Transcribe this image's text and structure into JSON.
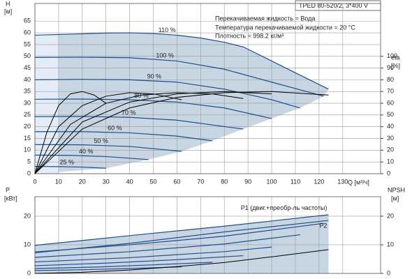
{
  "chart_data": [
    {
      "type": "line",
      "title": "TPED 80-520/2, 3*400 V",
      "notes": [
        "Перекачиваемая жидкость = Вода",
        "Температура перекачиваемой жидкости = 20 °C",
        "Плотность = 998.2 кг/м³"
      ],
      "ylabel": "H",
      "yunit": "[м]",
      "y2label": "eta",
      "y2unit": "[%]",
      "xlabel": "Q [м³/ч]",
      "xlim": [
        0,
        146
      ],
      "xticks": [
        0,
        10,
        20,
        30,
        40,
        50,
        60,
        70,
        80,
        90,
        100,
        110,
        120,
        130
      ],
      "ylim": [
        0,
        72.5
      ],
      "yticks": [
        0,
        5,
        10,
        15,
        20,
        25,
        30,
        35,
        40,
        45,
        50,
        55,
        60,
        65
      ],
      "y2lim": [
        0,
        145
      ],
      "y2ticks": [
        0,
        10,
        20,
        30,
        40,
        50,
        60,
        70,
        80,
        90,
        100
      ],
      "grid": true,
      "series": [
        {
          "name": "110 %",
          "color": "#1f4e8c",
          "x": [
            0,
            10,
            20,
            30,
            40,
            50,
            60,
            70,
            80,
            88,
            100,
            110,
            124
          ],
          "values": [
            59,
            59.3,
            59.6,
            59.9,
            60,
            59.7,
            59,
            57.8,
            56,
            54,
            48,
            43,
            36
          ]
        },
        {
          "name": "100 %",
          "color": "#1f4e8c",
          "x": [
            0,
            20,
            40,
            60,
            80,
            100,
            122
          ],
          "values": [
            49.5,
            49.6,
            49.4,
            48,
            44.5,
            39,
            33
          ]
        },
        {
          "name": "90 %",
          "color": "#1f4e8c",
          "x": [
            0,
            20,
            40,
            60,
            80,
            100,
            112
          ],
          "values": [
            40,
            40.2,
            40,
            39,
            36,
            31.5,
            28
          ]
        },
        {
          "name": "80 %",
          "color": "#1f4e8c",
          "x": [
            0,
            20,
            40,
            60,
            80,
            100
          ],
          "values": [
            31.7,
            31.8,
            31.5,
            30.5,
            28,
            23.5
          ]
        },
        {
          "name": "70 %",
          "color": "#1f4e8c",
          "x": [
            0,
            20,
            40,
            60,
            88
          ],
          "values": [
            24.3,
            24.4,
            24,
            22.8,
            19
          ]
        },
        {
          "name": "60 %",
          "color": "#1f4e8c",
          "x": [
            0,
            20,
            40,
            60,
            75
          ],
          "values": [
            17.9,
            17.9,
            17.4,
            16,
            14
          ]
        },
        {
          "name": "50 %",
          "color": "#1f4e8c",
          "x": [
            0,
            20,
            40,
            62
          ],
          "values": [
            12.4,
            12.3,
            11.6,
            9.5
          ]
        },
        {
          "name": "40 %",
          "color": "#1f4e8c",
          "x": [
            0,
            15,
            30,
            48
          ],
          "values": [
            7.9,
            7.8,
            7.3,
            6
          ]
        },
        {
          "name": "25 %",
          "color": "#1f4e8c",
          "x": [
            0,
            10,
            20,
            30
          ],
          "values": [
            3.1,
            3,
            2.8,
            2.3
          ]
        },
        {
          "axis": "y2",
          "color": "#000000",
          "x": [
            0,
            20,
            40,
            60,
            80,
            100,
            124
          ],
          "values": [
            0,
            38,
            56,
            65,
            69,
            70,
            67
          ]
        },
        {
          "axis": "y2",
          "color": "#000000",
          "x": [
            0,
            20,
            40,
            60,
            80,
            100
          ],
          "values": [
            0,
            44,
            61,
            68,
            70,
            68
          ]
        },
        {
          "axis": "y2",
          "color": "#000000",
          "x": [
            0,
            15,
            30,
            45,
            60,
            75,
            88
          ],
          "values": [
            0,
            42,
            60,
            67,
            69,
            68,
            64
          ]
        },
        {
          "axis": "y2",
          "color": "#000000",
          "x": [
            0,
            10,
            20,
            30,
            40,
            50,
            62
          ],
          "values": [
            0,
            40,
            58,
            66,
            69,
            68,
            63
          ]
        },
        {
          "axis": "y2",
          "color": "#000000",
          "x": [
            0,
            5,
            10,
            15,
            20,
            25,
            30
          ],
          "values": [
            0,
            35,
            58,
            68,
            70,
            67,
            60
          ]
        }
      ]
    },
    {
      "type": "line",
      "ylabel": "P",
      "yunit": "[кВт]",
      "y2label": "NPSH",
      "y2unit": "[м]",
      "xlim": [
        0,
        146
      ],
      "xticks": [
        0,
        10,
        20,
        30,
        40,
        50,
        60,
        70,
        80,
        90,
        100,
        110,
        120,
        130
      ],
      "ylim": [
        0,
        26.8
      ],
      "yticks": [
        0,
        10,
        20
      ],
      "y2lim": [
        0,
        26.8
      ],
      "y2ticks": [
        0,
        10,
        20
      ],
      "grid": true,
      "series": [
        {
          "name": "P1 (двиг.+преобр-ль частоты)",
          "color": "#1f4e8c",
          "x": [
            0,
            40,
            80,
            124
          ],
          "values": [
            9.8,
            13.2,
            16.5,
            20.5
          ]
        },
        {
          "color": "#1f4e8c",
          "x": [
            0,
            40,
            80,
            122
          ],
          "values": [
            7.5,
            10,
            13,
            17.5
          ]
        },
        {
          "color": "#1f4e8c",
          "x": [
            0,
            40,
            80,
            112
          ],
          "values": [
            5.6,
            7.6,
            10.3,
            13.5
          ]
        },
        {
          "color": "#1f4e8c",
          "x": [
            0,
            40,
            80,
            100
          ],
          "values": [
            4,
            5.5,
            7.6,
            9.2
          ]
        },
        {
          "color": "#1f4e8c",
          "x": [
            0,
            30,
            60,
            88
          ],
          "values": [
            2.7,
            3.6,
            4.8,
            6.2
          ]
        },
        {
          "color": "#1f4e8c",
          "x": [
            0,
            25,
            50,
            75
          ],
          "values": [
            1.7,
            2.2,
            3,
            3.9
          ]
        },
        {
          "color": "#1f4e8c",
          "x": [
            0,
            20,
            40,
            62
          ],
          "values": [
            1,
            1.3,
            1.7,
            2.3
          ]
        },
        {
          "name": "P2",
          "color": "#1f4e8c",
          "x": [
            0,
            40,
            80,
            124
          ],
          "values": [
            7.2,
            10.5,
            14.5,
            18.5
          ]
        },
        {
          "axis": "y2",
          "color": "#000000",
          "x": [
            0,
            20,
            40,
            60,
            80,
            100,
            124
          ],
          "values": [
            0,
            0.4,
            1.2,
            2.4,
            3.8,
            5.8,
            8.3
          ]
        }
      ]
    }
  ]
}
